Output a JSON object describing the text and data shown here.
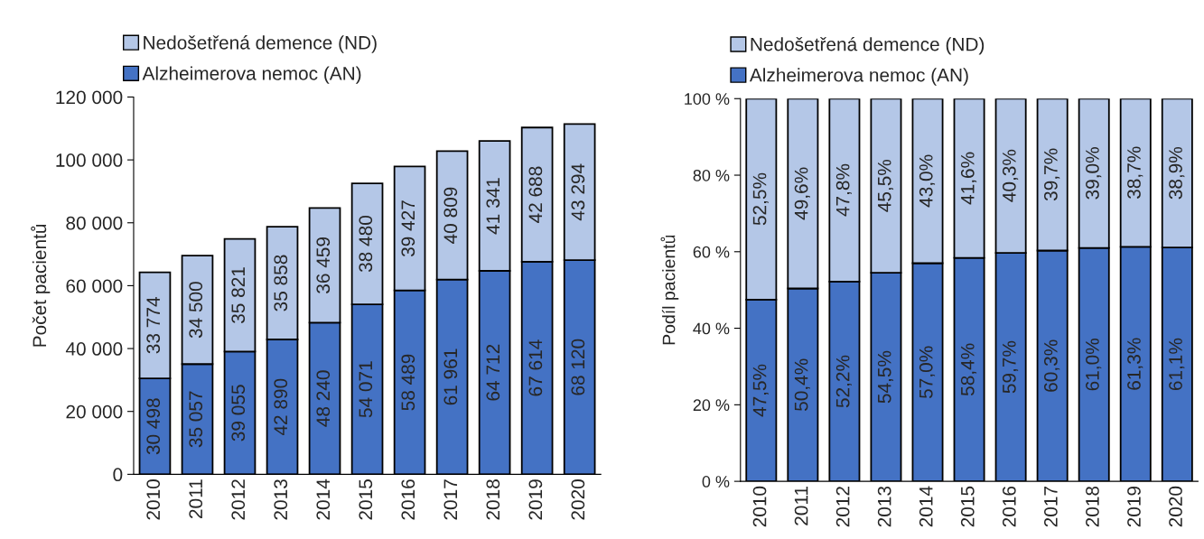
{
  "chart_data": [
    {
      "type": "bar",
      "stacked": true,
      "ylabel": "Počet pacientů",
      "categories": [
        "2010",
        "2011",
        "2012",
        "2013",
        "2014",
        "2015",
        "2016",
        "2017",
        "2018",
        "2019",
        "2020"
      ],
      "ylim": [
        0,
        120000
      ],
      "yticks": [
        {
          "value": 0,
          "label": "0"
        },
        {
          "value": 20000,
          "label": "20 000"
        },
        {
          "value": 40000,
          "label": "40 000"
        },
        {
          "value": 60000,
          "label": "60 000"
        },
        {
          "value": 80000,
          "label": "80 000"
        },
        {
          "value": 100000,
          "label": "100 000"
        },
        {
          "value": 120000,
          "label": "120 000"
        }
      ],
      "grid": false,
      "legend": "top left",
      "series": [
        {
          "name": "Alzheimerova nemoc (AN)",
          "color": "#4472c4",
          "values": [
            30498,
            35057,
            39055,
            42890,
            48240,
            54071,
            58489,
            61961,
            64712,
            67614,
            68120
          ],
          "value_labels": [
            "30 498",
            "35 057",
            "39 055",
            "42 890",
            "48 240",
            "54 071",
            "58 489",
            "61 961",
            "64 712",
            "67 614",
            "68 120"
          ]
        },
        {
          "name": "Nedošetřená demence (ND)",
          "color": "#b4c7e7",
          "values": [
            33774,
            34500,
            35821,
            35858,
            36459,
            38480,
            39427,
            40809,
            41341,
            42688,
            43294
          ],
          "value_labels": [
            "33 774",
            "34 500",
            "35 821",
            "35 858",
            "36 459",
            "38 480",
            "39 427",
            "40 809",
            "41 341",
            "42 688",
            "43 294"
          ]
        }
      ]
    },
    {
      "type": "bar",
      "stacked": true,
      "ylabel": "Podíl pacientů",
      "categories": [
        "2010",
        "2011",
        "2012",
        "2013",
        "2014",
        "2015",
        "2016",
        "2017",
        "2018",
        "2019",
        "2020"
      ],
      "ylim": [
        0,
        100
      ],
      "yticks": [
        {
          "value": 0,
          "label": "0 %"
        },
        {
          "value": 20,
          "label": "20 %"
        },
        {
          "value": 40,
          "label": "40 %"
        },
        {
          "value": 60,
          "label": "60 %"
        },
        {
          "value": 80,
          "label": "80 %"
        },
        {
          "value": 100,
          "label": "100 %"
        }
      ],
      "grid": false,
      "legend": "top left",
      "series": [
        {
          "name": "Alzheimerova nemoc (AN)",
          "color": "#4472c4",
          "values": [
            47.5,
            50.4,
            52.2,
            54.5,
            57.0,
            58.4,
            59.7,
            60.3,
            61.0,
            61.3,
            61.1
          ],
          "value_labels": [
            "47,5%",
            "50,4%",
            "52,2%",
            "54,5%",
            "57,0%",
            "58,4%",
            "59,7%",
            "60,3%",
            "61,0%",
            "61,3%",
            "61,1%"
          ]
        },
        {
          "name": "Nedošetřená demence (ND)",
          "color": "#b4c7e7",
          "values": [
            52.5,
            49.6,
            47.8,
            45.5,
            43.0,
            41.6,
            40.3,
            39.7,
            39.0,
            38.7,
            38.9
          ],
          "value_labels": [
            "52,5%",
            "49,6%",
            "47,8%",
            "45,5%",
            "43,0%",
            "41,6%",
            "40,3%",
            "39,7%",
            "39,0%",
            "38,7%",
            "38,9%"
          ]
        }
      ]
    }
  ]
}
